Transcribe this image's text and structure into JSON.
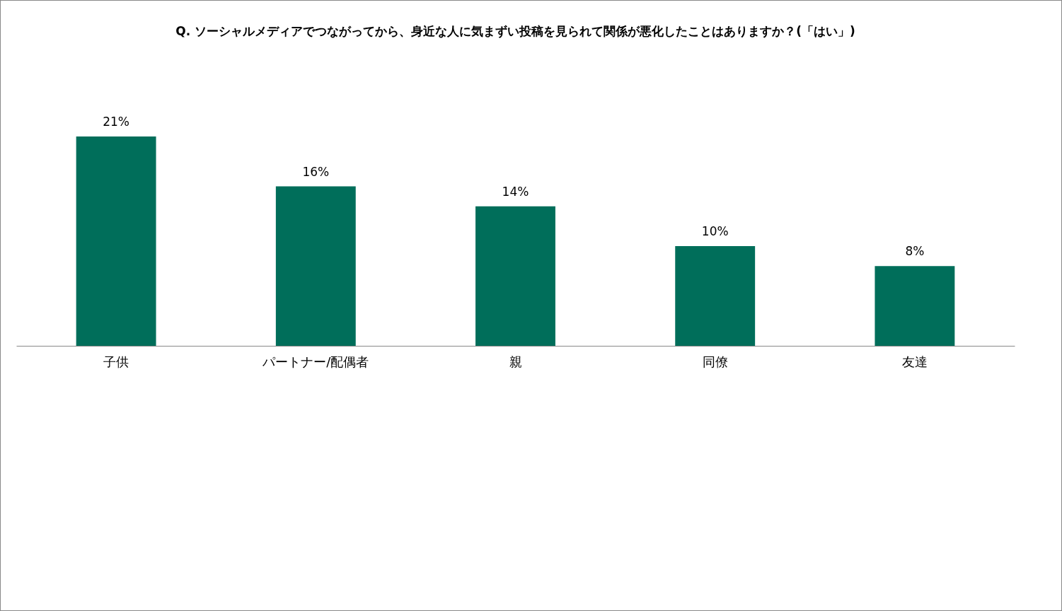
{
  "chart_data": {
    "type": "bar",
    "title": "Q. ソーシャルメディアでつながってから、身近な人に気まずい投稿を見られて関係が悪化したことはありますか？(「はい」)",
    "categories": [
      "子供",
      "パートナー/配偶者",
      "親",
      "同僚",
      "友達"
    ],
    "values": [
      21,
      16,
      14,
      10,
      8
    ],
    "value_labels": [
      "21%",
      "16%",
      "14%",
      "10%",
      "8%"
    ],
    "color": "#006e5a"
  }
}
